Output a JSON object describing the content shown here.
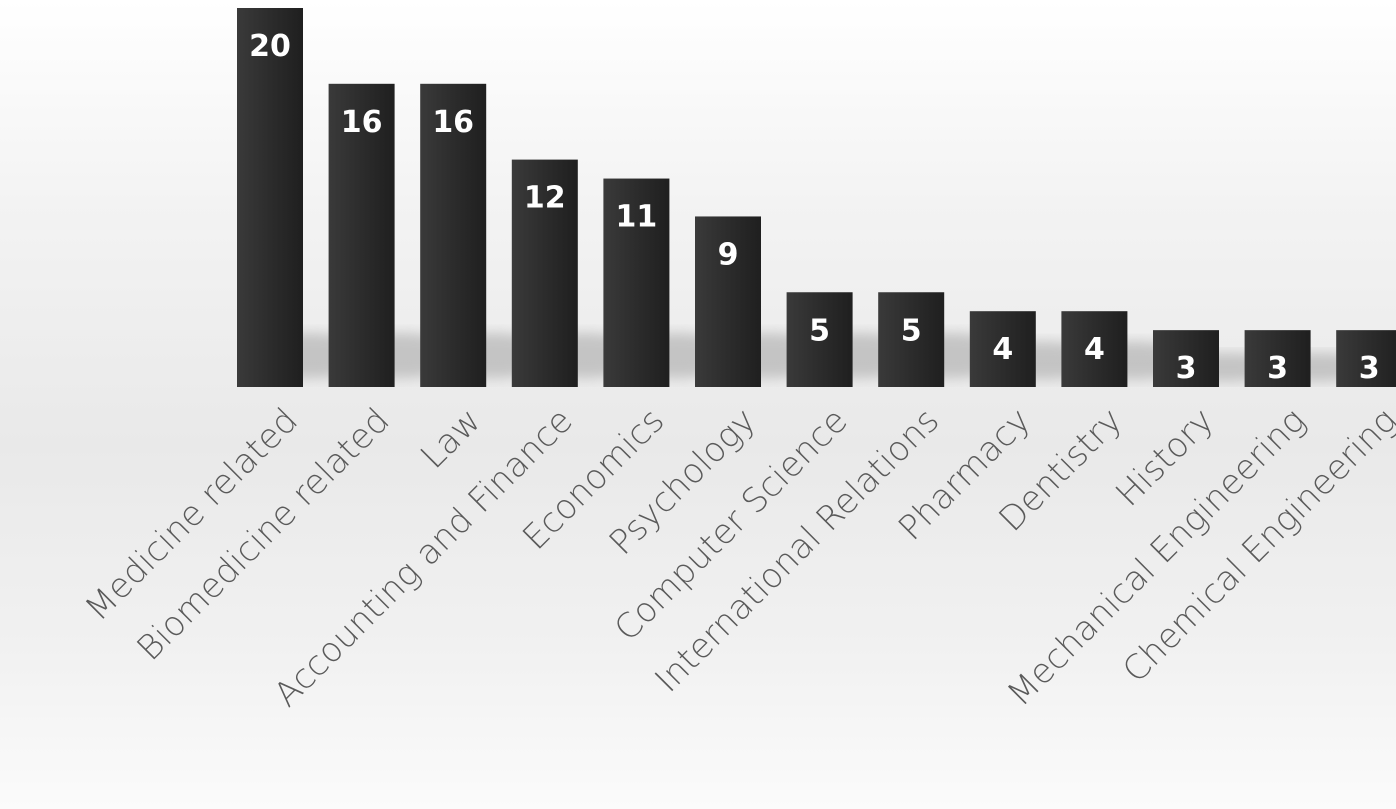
{
  "chart_data": {
    "type": "bar",
    "title": "",
    "xlabel": "",
    "ylabel": "",
    "categories": [
      "Medicine related",
      "Biomedicine related",
      "Law",
      "Accounting and Finance",
      "Economics",
      "Psychology",
      "Computer Science",
      "International Relations",
      "Pharmacy",
      "Dentistry",
      "History",
      "Mechanical Engineering",
      "Chemical Engineering"
    ],
    "values": [
      20,
      16,
      16,
      12,
      11,
      9,
      5,
      5,
      4,
      4,
      3,
      3,
      3
    ],
    "ylim": [
      0,
      20
    ],
    "grid": false,
    "legend": "none",
    "data_labels": "inside-top",
    "bar_color": "#2b2b2b",
    "label_color": "#ffffff",
    "axis_text_color": "#5a5a5a"
  }
}
